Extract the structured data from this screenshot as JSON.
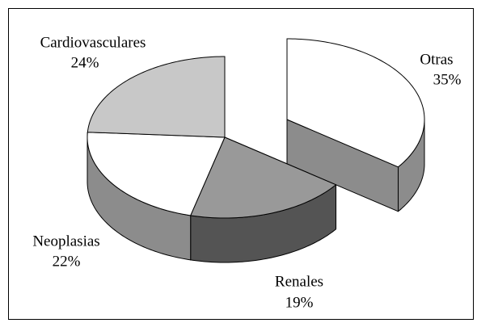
{
  "chart_data": {
    "type": "pie3d",
    "categories": [
      "Otras",
      "Renales",
      "Neoplasias",
      "Cardiovasculares"
    ],
    "values": [
      35,
      19,
      22,
      24
    ],
    "value_labels": [
      "35%",
      "19%",
      "22%",
      "24%"
    ],
    "colors": [
      "#ffffff",
      "#999999",
      "#ffffff",
      "#c8c8c8"
    ],
    "explode": [
      true,
      false,
      false,
      false
    ]
  }
}
